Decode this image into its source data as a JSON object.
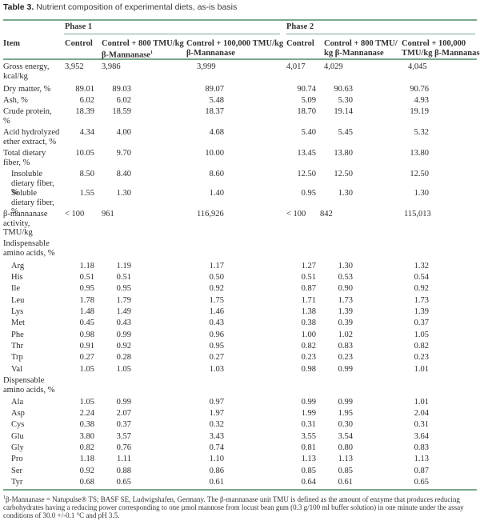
{
  "caption": {
    "label": "Table 3.",
    "text": " Nutrient composition of experimental diets, as-is basis"
  },
  "header": {
    "item": "Item",
    "phase1": "Phase 1",
    "phase2": "Phase 2",
    "p1_control": "Control",
    "p1_800_line1": "Control + 800 TMU/kg",
    "p1_800_line2": "β-Mannanase",
    "p1_800_sup": "1",
    "p1_100k_line1": "Control + 100,000 TMU/kg",
    "p1_100k_line2": "β-Mannanase",
    "p2_control": "Control",
    "p2_800_line1": "Control + 800 TMU/",
    "p2_800_line2": "kg β-Mannanase",
    "p2_100k_line1": "Control + 100,000",
    "p2_100k_line2": "TMU/kg β-Mannanase"
  },
  "rows": [
    {
      "item": "Gross energy, kcal/kg",
      "values": [
        "3,952",
        "3,986",
        "3,999",
        "4,017",
        "4,029",
        "4,045"
      ]
    },
    {
      "item": "Dry matter, %",
      "values": [
        "89.01",
        "89.03",
        "89.07",
        "90.74",
        "90.63",
        "90.76"
      ]
    },
    {
      "item": "Ash, %",
      "values": [
        "6.02",
        "6.02",
        "5.48",
        "5.09",
        "5.30",
        "4.93"
      ]
    },
    {
      "item": "Crude protein, %",
      "values": [
        "18.39",
        "18.59",
        "18.37",
        "18.70",
        "19.14",
        "19.19"
      ]
    },
    {
      "item": "Acid hydrolyzed ether extract, %",
      "values": [
        "4.34",
        "4.00",
        "4.68",
        "5.40",
        "5.45",
        "5.32"
      ]
    },
    {
      "item": "Total dietary fiber, %",
      "values": [
        "10.05",
        "9.70",
        "10.00",
        "13.45",
        "13.80",
        "13.80"
      ]
    },
    {
      "item": "Insoluble dietary fiber, %",
      "values": [
        "8.50",
        "8.40",
        "8.60",
        "12.50",
        "12.50",
        "12.50"
      ]
    },
    {
      "item": "Soluble dietary fiber, %",
      "values": [
        "1.55",
        "1.30",
        "1.40",
        "0.95",
        "1.30",
        "1.30"
      ]
    },
    {
      "item": "β-mannanase activity, TMU/kg",
      "values": [
        "< 100",
        "961",
        "116,926",
        "< 100",
        "842",
        "115,013"
      ]
    },
    {
      "item": "Indispensable amino acids, %",
      "values": []
    },
    {
      "item": "Arg",
      "values": [
        "1.18",
        "1.19",
        "1.17",
        "1.27",
        "1.30",
        "1.32"
      ]
    },
    {
      "item": "His",
      "values": [
        "0.51",
        "0.51",
        "0.50",
        "0.51",
        "0.53",
        "0.54"
      ]
    },
    {
      "item": "Ile",
      "values": [
        "0.95",
        "0.95",
        "0.92",
        "0.87",
        "0.90",
        "0.92"
      ]
    },
    {
      "item": "Leu",
      "values": [
        "1.78",
        "1.79",
        "1.75",
        "1.71",
        "1.73",
        "1.73"
      ]
    },
    {
      "item": "Lys",
      "values": [
        "1.48",
        "1.49",
        "1.46",
        "1.38",
        "1.39",
        "1.39"
      ]
    },
    {
      "item": "Met",
      "values": [
        "0.45",
        "0.43",
        "0.43",
        "0.38",
        "0.39",
        "0.37"
      ]
    },
    {
      "item": "Phe",
      "values": [
        "0.98",
        "0.99",
        "0.96",
        "1.00",
        "1.02",
        "1.05"
      ]
    },
    {
      "item": "Thr",
      "values": [
        "0.91",
        "0.92",
        "0.95",
        "0.82",
        "0.83",
        "0.82"
      ]
    },
    {
      "item": "Trp",
      "values": [
        "0.27",
        "0.28",
        "0.27",
        "0.23",
        "0.23",
        "0.23"
      ]
    },
    {
      "item": "Val",
      "values": [
        "1.05",
        "1.05",
        "1.03",
        "0.98",
        "0.99",
        "1.01"
      ]
    },
    {
      "item": "Dispensable amino acids, %",
      "values": []
    },
    {
      "item": "Ala",
      "values": [
        "1.05",
        "0.99",
        "0.97",
        "0.99",
        "0.99",
        "1.01"
      ]
    },
    {
      "item": "Asp",
      "values": [
        "2.24",
        "2.07",
        "1.97",
        "1.99",
        "1.95",
        "2.04"
      ]
    },
    {
      "item": "Cys",
      "values": [
        "0.38",
        "0.37",
        "0.32",
        "0.31",
        "0.30",
        "0.31"
      ]
    },
    {
      "item": "Glu",
      "values": [
        "3.80",
        "3.57",
        "3.43",
        "3.55",
        "3.54",
        "3.64"
      ]
    },
    {
      "item": "Gly",
      "values": [
        "0.82",
        "0.76",
        "0.74",
        "0.81",
        "0.80",
        "0.83"
      ]
    },
    {
      "item": "Pro",
      "values": [
        "1.18",
        "1.11",
        "1.10",
        "1.13",
        "1.13",
        "1.13"
      ]
    },
    {
      "item": "Ser",
      "values": [
        "0.92",
        "0.88",
        "0.86",
        "0.85",
        "0.85",
        "0.87"
      ]
    },
    {
      "item": "Tyr",
      "values": [
        "0.68",
        "0.65",
        "0.61",
        "0.64",
        "0.61",
        "0.65"
      ]
    }
  ],
  "footnote": {
    "sup": "1",
    "text": "β-Mannanase = Natupulse® TS; BASF SE, Ludwigshafen, Germany. The β-mannanase unit TMU is defined as the amount of enzyme that produces reducing carbohydrates having a reducing power corresponding to one µmol mannose from locust bean gum (0.3 g/100 ml buffer solution) in one minute under the assay conditions of 30.0 +/-0.1 °C and pH 3.5."
  },
  "colors": {
    "rule": "#7aa98e"
  }
}
